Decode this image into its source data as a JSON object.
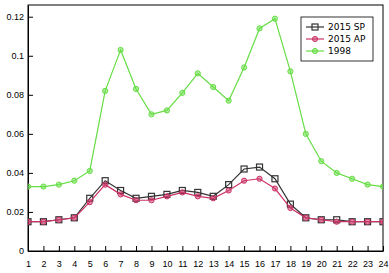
{
  "chart_data": {
    "type": "line",
    "x": [
      1,
      2,
      3,
      4,
      5,
      6,
      7,
      8,
      9,
      10,
      11,
      12,
      13,
      14,
      15,
      16,
      17,
      18,
      19,
      20,
      21,
      22,
      23,
      24
    ],
    "series": [
      {
        "name": "2015 SP",
        "color": "#333333",
        "marker": "square",
        "values": [
          0.015,
          0.015,
          0.016,
          0.017,
          0.027,
          0.036,
          0.031,
          0.027,
          0.028,
          0.029,
          0.031,
          0.03,
          0.028,
          0.034,
          0.042,
          0.043,
          0.037,
          0.024,
          0.017,
          0.016,
          0.016,
          0.015,
          0.015,
          0.015
        ]
      },
      {
        "name": "2015 AP",
        "color": "#cc3366",
        "marker": "circle",
        "values": [
          0.015,
          0.015,
          0.016,
          0.017,
          0.025,
          0.034,
          0.029,
          0.026,
          0.026,
          0.028,
          0.03,
          0.028,
          0.027,
          0.031,
          0.036,
          0.037,
          0.032,
          0.022,
          0.017,
          0.016,
          0.015,
          0.015,
          0.015,
          0.015
        ]
      },
      {
        "name": "1998",
        "color": "#66dd44",
        "marker": "circle",
        "values": [
          0.033,
          0.033,
          0.034,
          0.036,
          0.041,
          0.082,
          0.103,
          0.083,
          0.07,
          0.072,
          0.081,
          0.091,
          0.084,
          0.077,
          0.094,
          0.114,
          0.119,
          0.092,
          0.06,
          0.046,
          0.04,
          0.037,
          0.034,
          0.033
        ]
      }
    ],
    "xlim": [
      1,
      24
    ],
    "xticks": [
      1,
      2,
      3,
      4,
      5,
      6,
      7,
      8,
      9,
      10,
      11,
      12,
      13,
      14,
      15,
      16,
      17,
      18,
      19,
      20,
      21,
      22,
      23,
      24
    ],
    "ylim": [
      0,
      0.126
    ],
    "yticks": [
      0,
      0.02,
      0.04,
      0.06,
      0.08,
      0.1,
      0.12
    ],
    "grid": false,
    "legend": "upper right"
  }
}
